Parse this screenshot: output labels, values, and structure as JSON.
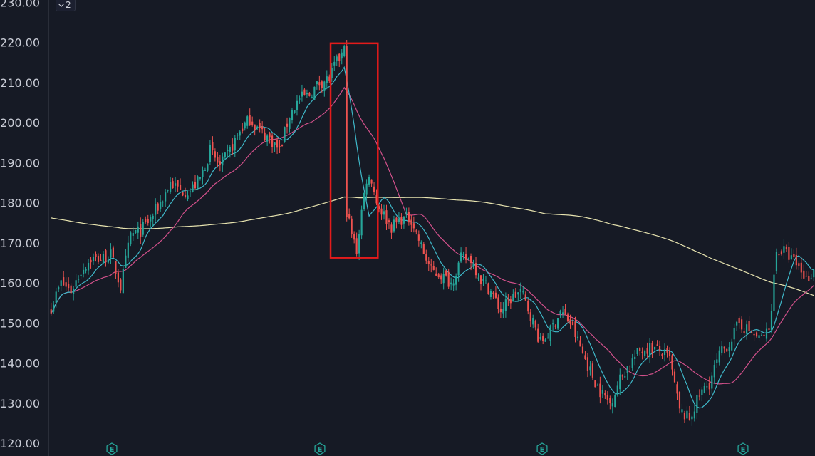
{
  "collapse_button": {
    "label": "2",
    "icon": "chevron-down-icon"
  },
  "colors": {
    "background": "#161a25",
    "up_candle": "#26a69a",
    "down_candle": "#ef5350",
    "ma_fast": "#3fb8c9",
    "ma_mid": "#d1508a",
    "ma_slow": "#e8e4b0",
    "highlight_box": "#e31b1b",
    "earnings_marker": "#26a69a"
  },
  "earnings_markers": [
    {
      "label": "E"
    },
    {
      "label": "E"
    },
    {
      "label": "E"
    },
    {
      "label": "E"
    }
  ],
  "chart_data": {
    "type": "candlestick",
    "y_axis": {
      "position": "left",
      "tick_labels": [
        "230.00",
        "220.00",
        "210.00",
        "200.00",
        "190.00",
        "180.00",
        "170.00",
        "160.00",
        "150.00",
        "140.00",
        "130.00",
        "120.00"
      ],
      "ylim": [
        120,
        230
      ]
    },
    "grid": false,
    "moving_averages": [
      {
        "role": "fast",
        "color": "#3fb8c9"
      },
      {
        "role": "mid",
        "color": "#d1508a"
      },
      {
        "role": "slow",
        "color": "#e8e4b0"
      }
    ],
    "approx_close_path": [
      [
        0,
        154
      ],
      [
        4,
        160
      ],
      [
        8,
        158
      ],
      [
        12,
        163
      ],
      [
        16,
        166
      ],
      [
        20,
        166
      ],
      [
        24,
        167
      ],
      [
        28,
        159
      ],
      [
        32,
        172
      ],
      [
        36,
        173
      ],
      [
        40,
        176
      ],
      [
        44,
        180
      ],
      [
        48,
        185
      ],
      [
        52,
        183
      ],
      [
        56,
        183
      ],
      [
        60,
        186
      ],
      [
        64,
        193
      ],
      [
        68,
        189
      ],
      [
        72,
        193
      ],
      [
        76,
        198
      ],
      [
        80,
        201
      ],
      [
        84,
        198
      ],
      [
        88,
        196
      ],
      [
        92,
        193
      ],
      [
        96,
        202
      ],
      [
        100,
        206
      ],
      [
        104,
        207
      ],
      [
        108,
        210
      ],
      [
        112,
        211
      ],
      [
        114,
        214
      ],
      [
        118,
        218
      ],
      [
        119,
        178
      ],
      [
        121,
        172
      ],
      [
        123,
        168
      ],
      [
        125,
        178
      ],
      [
        127,
        186
      ],
      [
        129,
        186
      ],
      [
        131,
        180
      ],
      [
        133,
        178
      ],
      [
        137,
        174
      ],
      [
        141,
        176
      ],
      [
        145,
        176
      ],
      [
        149,
        169
      ],
      [
        153,
        163
      ],
      [
        157,
        162
      ],
      [
        161,
        160
      ],
      [
        165,
        166
      ],
      [
        169,
        166
      ],
      [
        173,
        161
      ],
      [
        177,
        158
      ],
      [
        181,
        153
      ],
      [
        185,
        156
      ],
      [
        189,
        158
      ],
      [
        193,
        152
      ],
      [
        197,
        145
      ],
      [
        201,
        148
      ],
      [
        205,
        153
      ],
      [
        209,
        150
      ],
      [
        213,
        144
      ],
      [
        217,
        138
      ],
      [
        221,
        133
      ],
      [
        225,
        130
      ],
      [
        229,
        136
      ],
      [
        233,
        140
      ],
      [
        237,
        143
      ],
      [
        241,
        144
      ],
      [
        245,
        143
      ],
      [
        249,
        141
      ],
      [
        253,
        128
      ],
      [
        257,
        126
      ],
      [
        261,
        132
      ],
      [
        265,
        135
      ],
      [
        269,
        142
      ],
      [
        273,
        145
      ],
      [
        277,
        150
      ],
      [
        281,
        148
      ],
      [
        285,
        146
      ],
      [
        289,
        148
      ],
      [
        292,
        168
      ],
      [
        295,
        168
      ],
      [
        298,
        166
      ],
      [
        301,
        164
      ],
      [
        304,
        161
      ],
      [
        307,
        163
      ]
    ],
    "highlight_box": {
      "covers_candle_range": [
        113,
        131
      ],
      "price_range": [
        166.3,
        219.8
      ]
    }
  }
}
